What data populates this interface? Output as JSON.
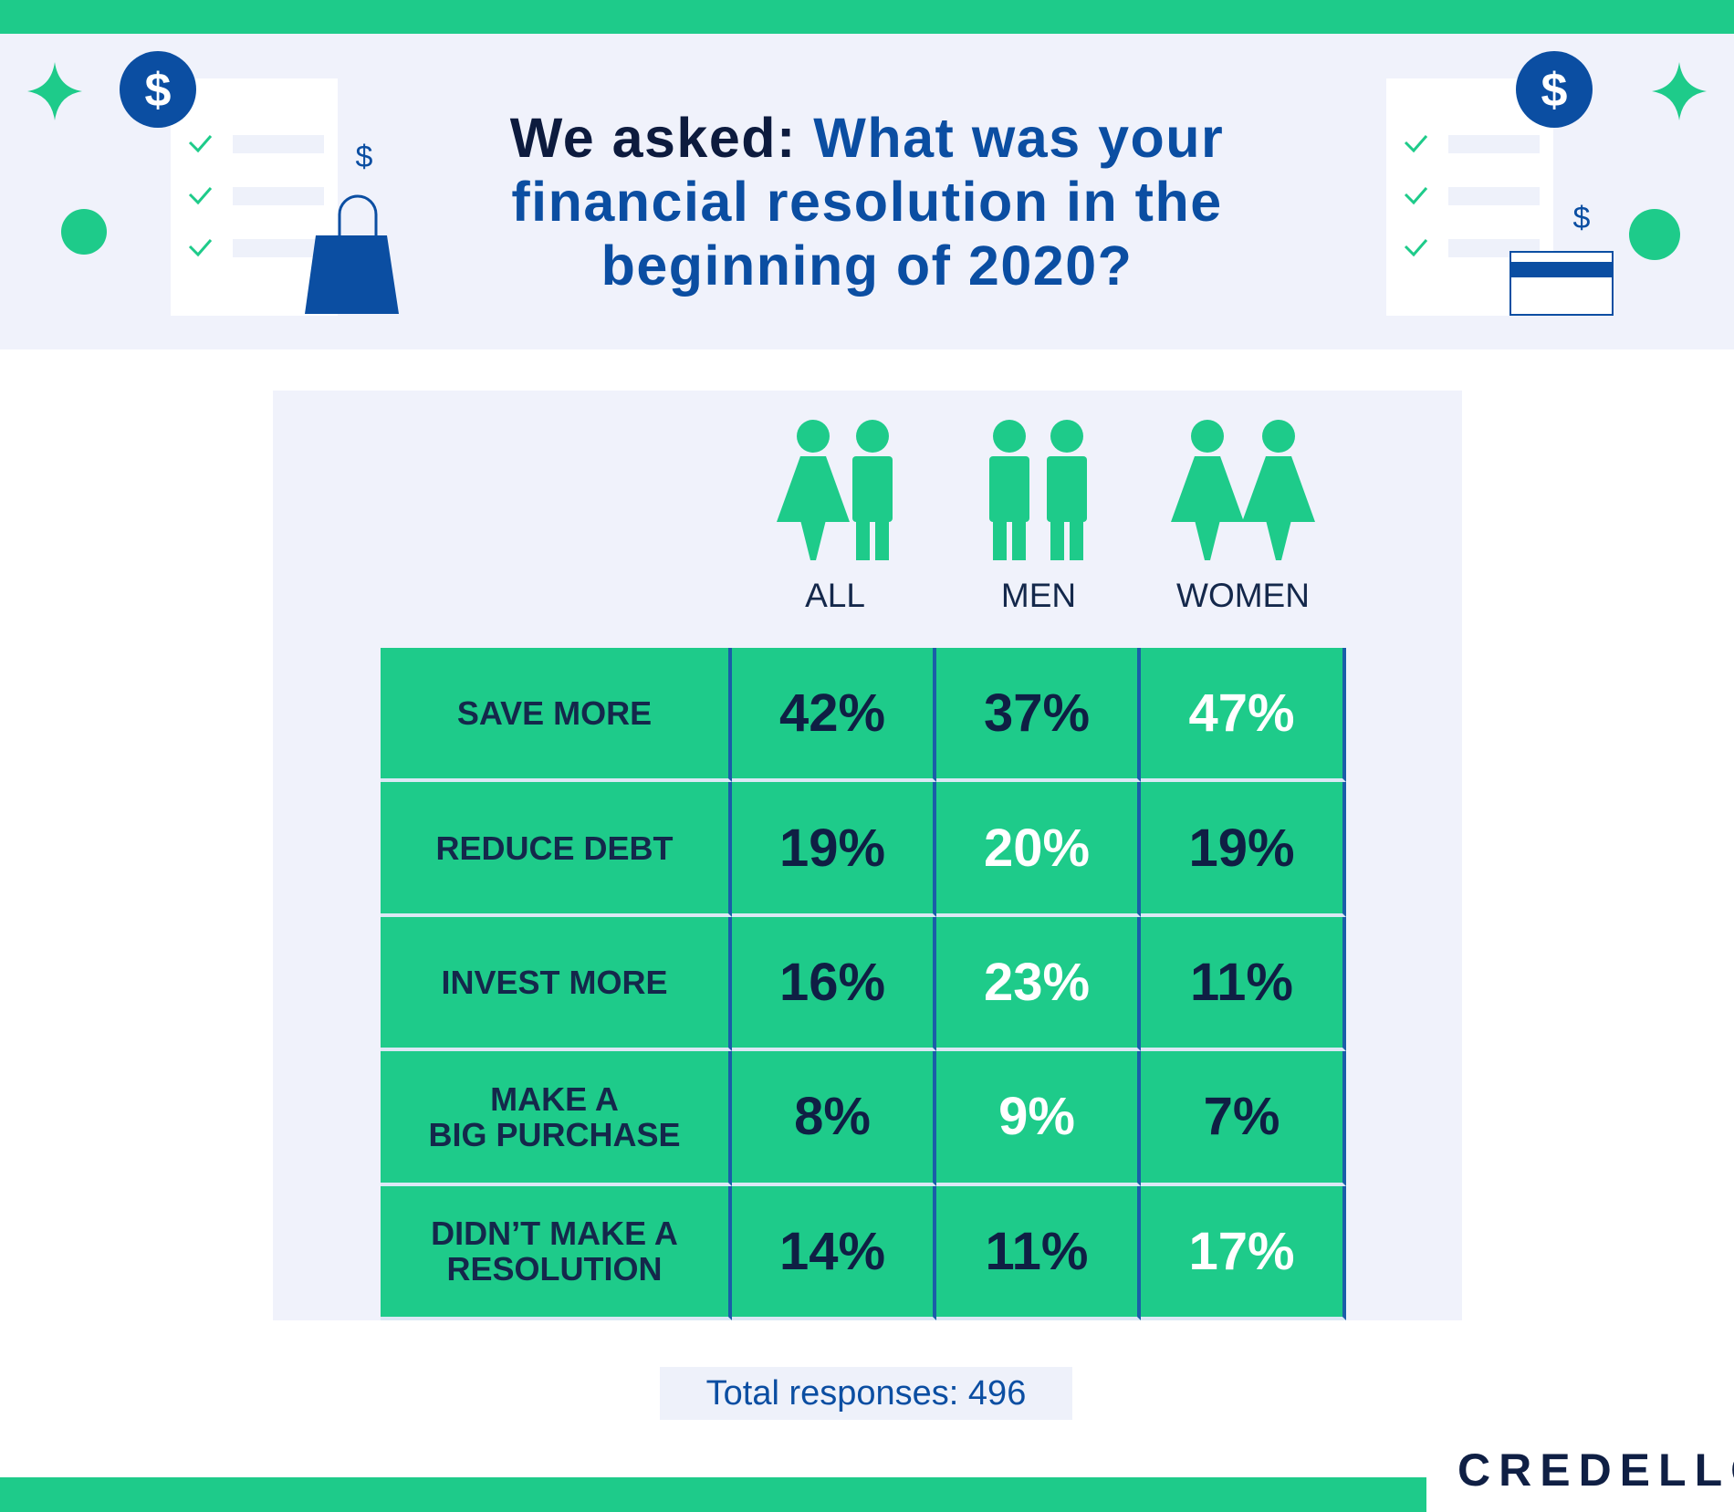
{
  "header": {
    "title_lead": "We asked:",
    "title_question": "What was your financial resolution in the beginning of 2020?"
  },
  "table": {
    "columns": [
      "ALL",
      "MEN",
      "WOMEN"
    ],
    "rows": [
      {
        "label": "SAVE MORE",
        "values": [
          "42%",
          "37%",
          "47%"
        ]
      },
      {
        "label": "REDUCE DEBT",
        "values": [
          "19%",
          "20%",
          "19%"
        ]
      },
      {
        "label": "INVEST MORE",
        "values": [
          "16%",
          "23%",
          "11%"
        ]
      },
      {
        "label": "MAKE A\nBIG PURCHASE",
        "values": [
          "8%",
          "9%",
          "7%"
        ]
      },
      {
        "label": "DIDN’T MAKE A\nRESOLUTION",
        "values": [
          "14%",
          "11%",
          "17%"
        ]
      }
    ]
  },
  "footer": {
    "total": "Total responses: 496"
  },
  "logo": "CREDELLO"
}
